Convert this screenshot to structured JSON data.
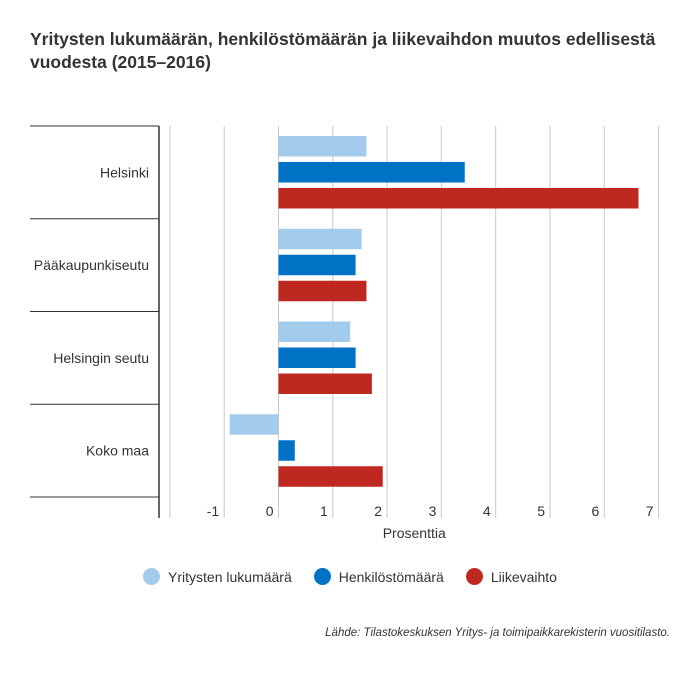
{
  "chart_data": {
    "type": "bar",
    "orientation": "horizontal",
    "title": "Yritysten lukumäärän, henkilöstömäärän ja liikevaihdon muutos edellisestä vuodesta (2015–2016)",
    "xlabel": "Prosenttia",
    "ylabel": "",
    "xlim": [
      -2,
      7.5
    ],
    "xticks": [
      "-1",
      "0",
      "1",
      "2",
      "3",
      "4",
      "5",
      "6",
      "7"
    ],
    "grid": true,
    "legend_position": "bottom",
    "categories": [
      "Helsinki",
      "Pääkaupunkiseutu",
      "Helsingin seutu",
      "Koko maa"
    ],
    "series": [
      {
        "name": "Yritysten lukumäärä",
        "color": "#a3cbeb",
        "values": [
          1.62,
          1.53,
          1.32,
          -0.9
        ]
      },
      {
        "name": "Henkilöstömäärä",
        "color": "#0072c6",
        "values": [
          3.43,
          1.42,
          1.42,
          0.3
        ]
      },
      {
        "name": "Liikevaihto",
        "color": "#bf2821",
        "values": [
          6.63,
          1.62,
          1.72,
          1.92
        ]
      }
    ],
    "source": "Lähde: Tilastokeskuksen Yritys- ja toimipaikkarekisterin vuositilasto."
  }
}
